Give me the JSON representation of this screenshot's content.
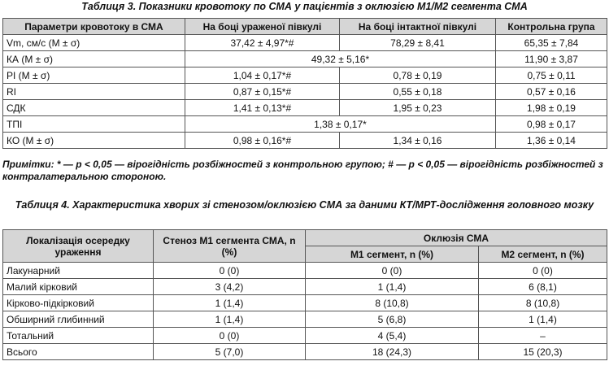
{
  "table3": {
    "caption": "Таблиця 3. Показники кровотоку по СМА у пацієнтів з оклюзією М1/М2 сегмента СМА",
    "headers": [
      "Параметри кровотоку в СМА",
      "На боці ураженої півкулі",
      "На боці інтактної півкулі",
      "Контрольна група"
    ],
    "rows": {
      "vm": {
        "param": "Vm, см/с (M ± σ)",
        "affected": "37,42 ± 4,97*#",
        "intact": "78,29 ± 8,41",
        "control": "65,35 ± 7,84"
      },
      "ka": {
        "param": "КА (M ± σ)",
        "merged": "49,32 ± 5,16*",
        "control": "11,90 ± 3,87"
      },
      "pi": {
        "param": "PI (M ± σ)",
        "affected": "1,04 ± 0,17*#",
        "intact": "0,78 ± 0,19",
        "control": "0,75 ± 0,11"
      },
      "ri": {
        "param": "RI",
        "affected": "0,87 ± 0,15*#",
        "intact": "0,55 ± 0,18",
        "control": "0,57 ± 0,16"
      },
      "sdk": {
        "param": "СДК",
        "affected": "1,41 ± 0,13*#",
        "intact": "1,95 ± 0,23",
        "control": "1,98 ± 0,19"
      },
      "tpi": {
        "param": "ТПІ",
        "merged": "1,38 ± 0,17*",
        "control": "0,98 ± 0,17"
      },
      "ko": {
        "param": "КО (M ± σ)",
        "affected": "0,98 ± 0,16*#",
        "intact": "1,34 ± 0,16",
        "control": "1,36 ± 0,14"
      }
    },
    "notes": "Примітки: * — p < 0,05 — вірогідність розбіжностей з контрольною групою; # — p < 0,05 — вірогідність розбіжностей з контралатеральною стороною."
  },
  "table4": {
    "caption": "Таблиця 4. Характеристика хворих зі стенозом/оклюзією СМА за даними КТ/МРТ-дослідження головного мозку",
    "headers": {
      "localization": "Локалізація осередку ураження",
      "stenosis": "Стеноз М1 сегмента СМА, n (%)",
      "occlusion": "Оклюзія СМА",
      "m1": "М1 сегмент, n (%)",
      "m2": "М2 сегмент, n (%)"
    },
    "rows": [
      {
        "label": "Лакунарний",
        "stenosis": "0 (0)",
        "m1": "0 (0)",
        "m2": "0 (0)"
      },
      {
        "label": "Малий кірковий",
        "stenosis": "3 (4,2)",
        "m1": "1 (1,4)",
        "m2": "6 (8,1)"
      },
      {
        "label": "Кірково-підкірковий",
        "stenosis": "1 (1,4)",
        "m1": "8 (10,8)",
        "m2": "8 (10,8)"
      },
      {
        "label": "Обширний глибинний",
        "stenosis": "1 (1,4)",
        "m1": "5 (6,8)",
        "m2": "1 (1,4)"
      },
      {
        "label": "Тотальний",
        "stenosis": "0 (0)",
        "m1": "4 (5,4)",
        "m2": "–"
      },
      {
        "label": "Всього",
        "stenosis": "5 (7,0)",
        "m1": "18 (24,3)",
        "m2": "15 (20,3)"
      }
    ]
  }
}
